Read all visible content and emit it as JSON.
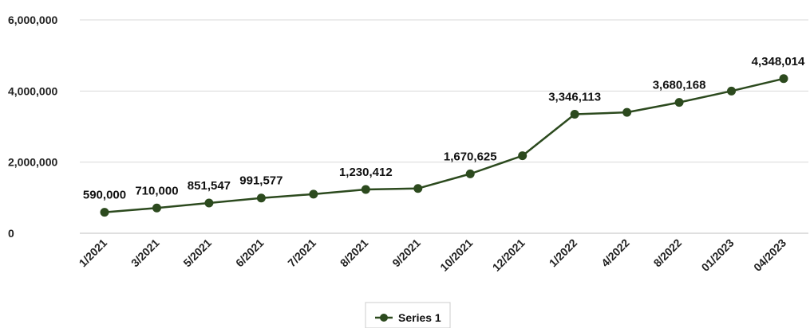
{
  "chart_data": {
    "type": "line",
    "title": "",
    "xlabel": "",
    "ylabel": "",
    "categories": [
      "1/2021",
      "3/2021",
      "5/2021",
      "6/2021",
      "7/2021",
      "8/2021",
      "9/2021",
      "10/2021",
      "12/2021",
      "1/2022",
      "4/2022",
      "8/2022",
      "01/2023",
      "04/2023"
    ],
    "series": [
      {
        "name": "Series 1",
        "values": [
          590000,
          710000,
          851547,
          991577,
          1100000,
          1230412,
          1260000,
          1670625,
          2180000,
          3346113,
          3400000,
          3680168,
          4000000,
          4348014
        ],
        "labels": [
          "590,000",
          "710,000",
          "851,547",
          "991,577",
          "",
          "1,230,412",
          "",
          "1,670,625",
          "",
          "3,346,113",
          "",
          "3,680,168",
          "",
          "4,348,014"
        ],
        "color": "#2c4a1e"
      }
    ],
    "ylim": [
      0,
      6000000
    ],
    "yticks": [
      0,
      2000000,
      4000000,
      6000000
    ],
    "ytick_labels": [
      "0",
      "2,000,000",
      "4,000,000",
      "6,000,000"
    ],
    "grid": true,
    "legend_position": "bottom-center"
  }
}
